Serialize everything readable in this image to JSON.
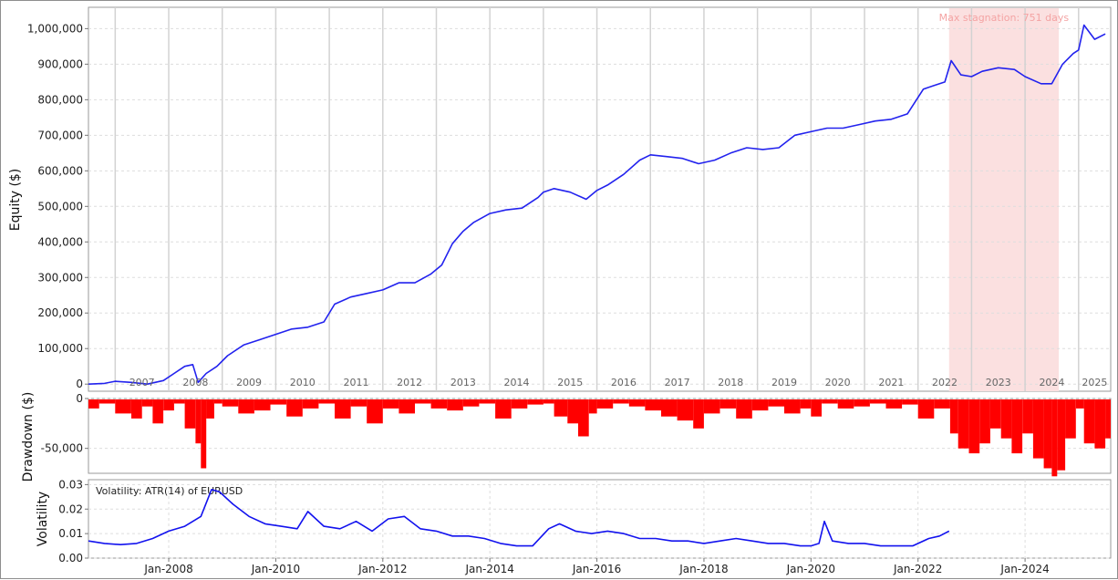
{
  "chart_data": [
    {
      "type": "line",
      "ylabel": "Equity ($)",
      "ylim": [
        -20000,
        1060000
      ],
      "yticks": [
        0,
        100000,
        200000,
        300000,
        400000,
        500000,
        600000,
        700000,
        800000,
        900000,
        1000000
      ],
      "ytick_labels": [
        "0",
        "100,000",
        "200,000",
        "300,000",
        "400,000",
        "500,000",
        "600,000",
        "700,000",
        "800,000",
        "900,000",
        "1,000,000"
      ],
      "grid": true,
      "year_labels": [
        "2007",
        "2008",
        "2009",
        "2010",
        "2011",
        "2012",
        "2013",
        "2014",
        "2015",
        "2016",
        "2017",
        "2018",
        "2019",
        "2020",
        "2021",
        "2022",
        "2023",
        "2024",
        "2025"
      ],
      "line_color": "#2222ee",
      "stagnation": {
        "label": "Max stagnation: 751 days",
        "start": 2022.58,
        "end": 2024.63,
        "color": "#fbe0e0"
      },
      "series": [
        {
          "x": [
            2006.5,
            2006.8,
            2007.0,
            2007.3,
            2007.6,
            2007.9,
            2008.1,
            2008.3,
            2008.45,
            2008.55,
            2008.7,
            2008.9,
            2009.1,
            2009.4,
            2009.7,
            2010.0,
            2010.3,
            2010.6,
            2010.9,
            2011.1,
            2011.4,
            2011.7,
            2012.0,
            2012.3,
            2012.6,
            2012.9,
            2013.1,
            2013.3,
            2013.5,
            2013.7,
            2014.0,
            2014.3,
            2014.6,
            2014.9,
            2015.0,
            2015.2,
            2015.5,
            2015.8,
            2016.0,
            2016.2,
            2016.5,
            2016.8,
            2017.0,
            2017.3,
            2017.6,
            2017.9,
            2018.2,
            2018.5,
            2018.8,
            2019.1,
            2019.4,
            2019.7,
            2020.0,
            2020.3,
            2020.6,
            2020.9,
            2021.2,
            2021.5,
            2021.8,
            2022.1,
            2022.3,
            2022.5,
            2022.62,
            2022.8,
            2023.0,
            2023.2,
            2023.5,
            2023.8,
            2024.0,
            2024.3,
            2024.5,
            2024.7,
            2024.9,
            2025.0,
            2025.1,
            2025.3,
            2025.5
          ],
          "y": [
            0,
            2000,
            8000,
            5000,
            0,
            10000,
            30000,
            50000,
            55000,
            5000,
            30000,
            50000,
            80000,
            110000,
            125000,
            140000,
            155000,
            160000,
            175000,
            225000,
            245000,
            255000,
            265000,
            285000,
            285000,
            310000,
            335000,
            395000,
            430000,
            455000,
            480000,
            490000,
            495000,
            525000,
            540000,
            550000,
            540000,
            520000,
            545000,
            560000,
            590000,
            630000,
            645000,
            640000,
            635000,
            620000,
            630000,
            650000,
            665000,
            660000,
            665000,
            700000,
            710000,
            720000,
            720000,
            730000,
            740000,
            745000,
            760000,
            830000,
            840000,
            850000,
            910000,
            870000,
            865000,
            880000,
            890000,
            885000,
            865000,
            845000,
            845000,
            900000,
            930000,
            940000,
            1010000,
            970000,
            985000
          ]
        }
      ]
    },
    {
      "type": "bar",
      "ylabel": "Drawdown ($)",
      "ylim": [
        -75000,
        0
      ],
      "yticks": [
        0,
        -50000
      ],
      "ytick_labels": [
        "0",
        "-50,000"
      ],
      "grid": true,
      "bar_color": "#ff0000",
      "x": [
        2006.5,
        2006.7,
        2007.0,
        2007.3,
        2007.5,
        2007.7,
        2007.9,
        2008.1,
        2008.3,
        2008.5,
        2008.6,
        2008.7,
        2008.85,
        2009.0,
        2009.3,
        2009.6,
        2009.9,
        2010.2,
        2010.5,
        2010.8,
        2011.1,
        2011.4,
        2011.7,
        2012.0,
        2012.3,
        2012.6,
        2012.9,
        2013.2,
        2013.5,
        2013.8,
        2014.1,
        2014.4,
        2014.7,
        2015.0,
        2015.2,
        2015.45,
        2015.65,
        2015.85,
        2016.0,
        2016.3,
        2016.6,
        2016.9,
        2017.2,
        2017.5,
        2017.8,
        2018.0,
        2018.3,
        2018.6,
        2018.9,
        2019.2,
        2019.5,
        2019.8,
        2020.0,
        2020.2,
        2020.5,
        2020.8,
        2021.1,
        2021.4,
        2021.7,
        2022.0,
        2022.3,
        2022.6,
        2022.75,
        2022.95,
        2023.15,
        2023.35,
        2023.55,
        2023.75,
        2023.95,
        2024.15,
        2024.35,
        2024.5,
        2024.6,
        2024.75,
        2024.95,
        2025.1,
        2025.3,
        2025.5
      ],
      "values": [
        -10000,
        -5000,
        -15000,
        -20000,
        -8000,
        -25000,
        -12000,
        -5000,
        -30000,
        -45000,
        -70000,
        -20000,
        -5000,
        -8000,
        -15000,
        -12000,
        -6000,
        -18000,
        -10000,
        -5000,
        -20000,
        -8000,
        -25000,
        -10000,
        -15000,
        -5000,
        -10000,
        -12000,
        -8000,
        -5000,
        -20000,
        -10000,
        -6000,
        -5000,
        -18000,
        -25000,
        -38000,
        -15000,
        -10000,
        -5000,
        -8000,
        -12000,
        -18000,
        -22000,
        -30000,
        -15000,
        -10000,
        -20000,
        -12000,
        -8000,
        -15000,
        -10000,
        -18000,
        -5000,
        -10000,
        -8000,
        -5000,
        -10000,
        -6000,
        -20000,
        -10000,
        -35000,
        -50000,
        -55000,
        -45000,
        -30000,
        -40000,
        -55000,
        -35000,
        -60000,
        -70000,
        -78000,
        -72000,
        -40000,
        -10000,
        -45000,
        -50000,
        -40000
      ]
    },
    {
      "type": "line",
      "ylabel": "Volatility",
      "title": "Volatility: ATR(14) of EURUSD",
      "ylim": [
        0,
        0.032
      ],
      "yticks": [
        0,
        0.01,
        0.02,
        0.03
      ],
      "ytick_labels": [
        "0.00",
        "0.01",
        "0.02",
        "0.03"
      ],
      "grid": true,
      "line_color": "#1212ee",
      "xtick_labels": [
        {
          "x": 2008.0,
          "label": "Jan-2008"
        },
        {
          "x": 2010.0,
          "label": "Jan-2010"
        },
        {
          "x": 2012.0,
          "label": "Jan-2012"
        },
        {
          "x": 2014.0,
          "label": "Jan-2014"
        },
        {
          "x": 2016.0,
          "label": "Jan-2016"
        },
        {
          "x": 2018.0,
          "label": "Jan-2018"
        },
        {
          "x": 2020.0,
          "label": "Jan-2020"
        },
        {
          "x": 2022.0,
          "label": "Jan-2022"
        },
        {
          "x": 2024.0,
          "label": "Jan-2024"
        }
      ],
      "series": [
        {
          "x": [
            2006.5,
            2006.8,
            2007.1,
            2007.4,
            2007.7,
            2008.0,
            2008.3,
            2008.6,
            2008.8,
            2008.95,
            2009.2,
            2009.5,
            2009.8,
            2010.1,
            2010.4,
            2010.6,
            2010.9,
            2011.2,
            2011.5,
            2011.8,
            2012.1,
            2012.4,
            2012.7,
            2013.0,
            2013.3,
            2013.6,
            2013.9,
            2014.2,
            2014.5,
            2014.8,
            2015.1,
            2015.3,
            2015.6,
            2015.9,
            2016.2,
            2016.5,
            2016.8,
            2017.1,
            2017.4,
            2017.7,
            2018.0,
            2018.3,
            2018.6,
            2018.9,
            2019.2,
            2019.5,
            2019.8,
            2020.0,
            2020.15,
            2020.25,
            2020.4,
            2020.7,
            2021.0,
            2021.3,
            2021.6,
            2021.9,
            2022.2,
            2022.4,
            2022.58
          ],
          "y": [
            0.007,
            0.006,
            0.0055,
            0.006,
            0.008,
            0.011,
            0.013,
            0.017,
            0.028,
            0.027,
            0.022,
            0.017,
            0.014,
            0.013,
            0.012,
            0.019,
            0.013,
            0.012,
            0.015,
            0.011,
            0.016,
            0.017,
            0.012,
            0.011,
            0.009,
            0.009,
            0.008,
            0.006,
            0.005,
            0.005,
            0.012,
            0.014,
            0.011,
            0.01,
            0.011,
            0.01,
            0.008,
            0.008,
            0.007,
            0.007,
            0.006,
            0.007,
            0.008,
            0.007,
            0.006,
            0.006,
            0.005,
            0.005,
            0.006,
            0.015,
            0.007,
            0.006,
            0.006,
            0.005,
            0.005,
            0.005,
            0.008,
            0.009,
            0.011
          ]
        }
      ]
    }
  ]
}
